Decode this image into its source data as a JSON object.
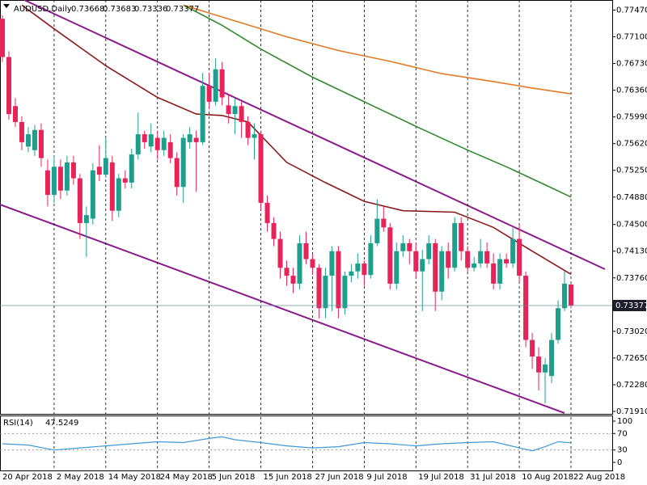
{
  "chart_data": [
    {
      "type": "candlestick",
      "title": "AUDUSD,Daily",
      "categories": [
        "20 Apr 2018",
        null,
        null,
        null,
        null,
        null,
        null,
        null,
        "2 May 2018",
        null,
        null,
        null,
        null,
        null,
        null,
        null,
        "14 May 2018",
        null,
        null,
        null,
        null,
        null,
        null,
        null,
        "24 May 2018",
        null,
        null,
        null,
        null,
        null,
        null,
        null,
        "5 Jun 2018",
        null,
        null,
        null,
        null,
        null,
        null,
        null,
        "15 Jun 2018",
        null,
        null,
        null,
        null,
        null,
        null,
        null,
        "27 Jun 2018",
        null,
        null,
        null,
        null,
        null,
        null,
        null,
        "9 Jul 2018",
        null,
        null,
        null,
        null,
        null,
        null,
        null,
        "19 Jul 2018",
        null,
        null,
        null,
        null,
        null,
        null,
        null,
        "31 Jul 2018",
        null,
        null,
        null,
        null,
        null,
        null,
        null,
        "10 Aug 2018",
        null,
        null,
        null,
        null,
        null,
        null,
        null,
        "22 Aug 2018"
      ],
      "open": [
        0.7735,
        0.7682,
        0.7614,
        0.7592,
        0.7558,
        0.7553,
        0.7581,
        0.7525,
        0.7491,
        0.753,
        0.7497,
        0.7536,
        0.7514,
        0.7452,
        0.7458,
        0.753,
        0.7519,
        0.7536,
        0.7469,
        0.7514,
        0.7508,
        0.7547,
        0.7575,
        0.7558,
        0.757,
        0.7553,
        0.7564,
        0.7542,
        0.7502,
        0.7564,
        0.757,
        0.7564,
        0.7642,
        0.762,
        0.7665,
        0.7615,
        0.7603,
        0.7614,
        0.7592,
        0.757,
        0.7575,
        0.748,
        0.7452,
        0.743,
        0.739,
        0.7379,
        0.7368,
        0.7424,
        0.7402,
        0.739,
        0.7334,
        0.7379,
        0.7413,
        0.7334,
        0.7379,
        0.7385,
        0.7396,
        0.738,
        0.7424,
        0.7458,
        0.7446,
        0.7368,
        0.7413,
        0.7424,
        0.7413,
        0.7385,
        0.7402,
        0.7424,
        0.7357,
        0.7413,
        0.739,
        0.7452,
        0.7413,
        0.739,
        0.7396,
        0.7413,
        0.7396,
        0.7368,
        0.7402,
        0.7396,
        0.743,
        0.7379,
        0.729,
        0.7267,
        0.7245,
        0.724,
        0.729,
        0.7334,
        0.73668
      ],
      "high": [
        0.774,
        0.769,
        0.7625,
        0.76,
        0.7585,
        0.7588,
        0.759,
        0.754,
        0.7545,
        0.754,
        0.7545,
        0.7545,
        0.752,
        0.7475,
        0.7535,
        0.756,
        0.757,
        0.7545,
        0.752,
        0.7525,
        0.7555,
        0.7605,
        0.758,
        0.759,
        0.758,
        0.758,
        0.7575,
        0.755,
        0.7575,
        0.7585,
        0.758,
        0.766,
        0.766,
        0.768,
        0.7675,
        0.763,
        0.7625,
        0.762,
        0.76,
        0.759,
        0.758,
        0.749,
        0.746,
        0.744,
        0.74,
        0.739,
        0.7435,
        0.744,
        0.741,
        0.7395,
        0.739,
        0.742,
        0.742,
        0.7385,
        0.7395,
        0.741,
        0.74,
        0.7435,
        0.7485,
        0.7475,
        0.7452,
        0.7425,
        0.7435,
        0.743,
        0.7425,
        0.7415,
        0.7435,
        0.743,
        0.742,
        0.7425,
        0.746,
        0.746,
        0.742,
        0.7405,
        0.743,
        0.7425,
        0.741,
        0.741,
        0.741,
        0.7445,
        0.745,
        0.7385,
        0.73,
        0.728,
        0.7265,
        0.73,
        0.7345,
        0.7385,
        0.73683
      ],
      "low": [
        0.7675,
        0.7595,
        0.7585,
        0.7553,
        0.755,
        0.7545,
        0.753,
        0.7475,
        0.748,
        0.7485,
        0.749,
        0.7505,
        0.743,
        0.7405,
        0.745,
        0.751,
        0.7515,
        0.7455,
        0.746,
        0.75,
        0.75,
        0.754,
        0.7555,
        0.755,
        0.754,
        0.7545,
        0.7535,
        0.749,
        0.748,
        0.7555,
        0.7495,
        0.756,
        0.761,
        0.7615,
        0.7615,
        0.759,
        0.7575,
        0.757,
        0.756,
        0.754,
        0.747,
        0.744,
        0.742,
        0.7375,
        0.7365,
        0.7355,
        0.736,
        0.7395,
        0.738,
        0.732,
        0.732,
        0.733,
        0.732,
        0.7325,
        0.737,
        0.7375,
        0.7365,
        0.7375,
        0.742,
        0.744,
        0.736,
        0.736,
        0.7405,
        0.7395,
        0.7375,
        0.733,
        0.7395,
        0.733,
        0.7345,
        0.7375,
        0.7385,
        0.74,
        0.7385,
        0.7385,
        0.739,
        0.739,
        0.736,
        0.736,
        0.739,
        0.739,
        0.737,
        0.728,
        0.725,
        0.722,
        0.7202,
        0.723,
        0.7285,
        0.733,
        0.73336
      ],
      "close": [
        0.7682,
        0.7603,
        0.7592,
        0.7564,
        0.7575,
        0.7581,
        0.7542,
        0.7491,
        0.753,
        0.7497,
        0.7536,
        0.7514,
        0.7452,
        0.7463,
        0.7525,
        0.7519,
        0.7542,
        0.7469,
        0.7514,
        0.7508,
        0.7547,
        0.7575,
        0.7564,
        0.7575,
        0.7553,
        0.757,
        0.7542,
        0.7502,
        0.757,
        0.7575,
        0.7564,
        0.7642,
        0.762,
        0.7665,
        0.7626,
        0.7603,
        0.7614,
        0.7592,
        0.757,
        0.7575,
        0.748,
        0.7452,
        0.743,
        0.739,
        0.7379,
        0.7368,
        0.7424,
        0.7402,
        0.739,
        0.7334,
        0.7379,
        0.7413,
        0.7334,
        0.7379,
        0.7385,
        0.7396,
        0.738,
        0.7424,
        0.7458,
        0.7446,
        0.7368,
        0.7413,
        0.7424,
        0.7413,
        0.7385,
        0.7402,
        0.7424,
        0.7357,
        0.7413,
        0.739,
        0.7452,
        0.7413,
        0.739,
        0.7396,
        0.7413,
        0.7396,
        0.7368,
        0.7402,
        0.7396,
        0.743,
        0.7379,
        0.729,
        0.7267,
        0.7245,
        0.7256,
        0.729,
        0.7334,
        0.7368,
        0.73377
      ],
      "up_color": "#1f9e8e",
      "down_color": "#e4245a",
      "lines": [
        {
          "color": "#8b1a1a",
          "x": [
            3,
            8,
            16,
            24,
            30,
            34,
            38,
            44,
            50,
            56,
            62,
            70,
            76,
            82,
            88
          ],
          "values": [
            0.7754,
            0.7721,
            0.767,
            0.7626,
            0.7603,
            0.7601,
            0.7592,
            0.7536,
            0.7508,
            0.7482,
            0.7469,
            0.7467,
            0.7446,
            0.7413,
            0.7381
          ]
        },
        {
          "color": "#2e8b2e",
          "x": [
            28,
            34,
            40,
            48,
            56,
            64,
            72,
            78,
            84,
            88
          ],
          "values": [
            0.7754,
            0.7726,
            0.7693,
            0.7654,
            0.762,
            0.7586,
            0.7553,
            0.753,
            0.7505,
            0.7488
          ]
        },
        {
          "color": "#e07b28",
          "x": [
            28,
            36,
            44,
            52,
            60,
            68,
            76,
            82,
            88
          ],
          "values": [
            0.7754,
            0.7732,
            0.771,
            0.7691,
            0.7676,
            0.7659,
            0.7648,
            0.7639,
            0.7631
          ]
        }
      ],
      "ylim": [
        0.71876,
        0.7761
      ],
      "yticks": [
        {
          "value": 0.7747,
          "label": "0.77470"
        },
        {
          "value": 0.771,
          "label": "0.77100"
        },
        {
          "value": 0.7673,
          "label": "0.76730"
        },
        {
          "value": 0.7636,
          "label": "0.76360"
        },
        {
          "value": 0.7599,
          "label": "0.75990"
        },
        {
          "value": 0.7562,
          "label": "0.75620"
        },
        {
          "value": 0.7525,
          "label": "0.75250"
        },
        {
          "value": 0.7488,
          "label": "0.74880"
        },
        {
          "value": 0.745,
          "label": "0.74500"
        },
        {
          "value": 0.7413,
          "label": "0.74130"
        },
        {
          "value": 0.7376,
          "label": "0.73760"
        },
        {
          "value": 0.7302,
          "label": "0.73020"
        },
        {
          "value": 0.7265,
          "label": "0.72650"
        },
        {
          "value": 0.7228,
          "label": "0.72280"
        },
        {
          "value": 0.7191,
          "label": "0.71910"
        }
      ],
      "grid": true
    },
    {
      "type": "line",
      "title": "RSI(14)",
      "color": "#3f9ad8",
      "x": [
        0,
        4,
        8,
        12,
        16,
        20,
        24,
        28,
        32,
        34,
        36,
        40,
        44,
        48,
        52,
        56,
        60,
        64,
        68,
        72,
        76,
        80,
        82,
        84,
        86,
        88
      ],
      "values": [
        45,
        42,
        30,
        35,
        40,
        45,
        50,
        48,
        58,
        62,
        55,
        48,
        40,
        35,
        38,
        48,
        45,
        40,
        45,
        48,
        50,
        35,
        28,
        38,
        50,
        47.5249
      ],
      "ylim": [
        0,
        100
      ],
      "yticks": [
        100,
        70,
        30,
        0
      ]
    }
  ]
}
